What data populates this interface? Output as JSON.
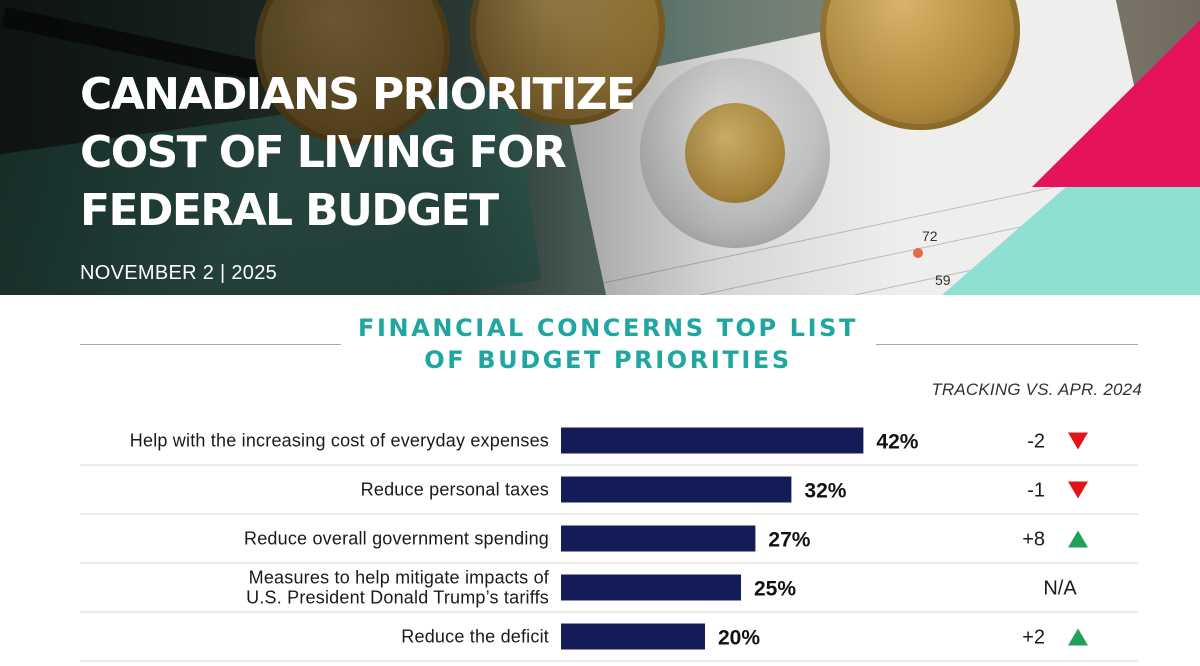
{
  "header": {
    "title_lines": [
      "CANADIANS PRIORITIZE",
      "COST OF LIVING FOR",
      "FEDERAL BUDGET"
    ],
    "date": "NOVEMBER 2 | 2025",
    "background_chart_labels": [
      "72",
      "59"
    ]
  },
  "colors": {
    "bar": "#141c57",
    "title_teal": "#1fa6a0",
    "accent_pink": "#e5135a",
    "accent_mint": "#8ee0d3",
    "up_green": "#22a05a",
    "down_red": "#e3131b"
  },
  "chart_data": {
    "type": "bar",
    "orientation": "horizontal",
    "title": "FINANCIAL CONCERNS TOP LIST OF BUDGET PRIORITIES",
    "title_lines": [
      "FINANCIAL CONCERNS TOP LIST",
      "OF BUDGET PRIORITIES"
    ],
    "tracking_header": "TRACKING VS. APR. 2024",
    "categories": [
      "Help with the increasing cost of everyday expenses",
      "Reduce personal taxes",
      "Reduce overall government spending",
      "Measures to help mitigate impacts of U.S. President Donald Trump’s tariffs",
      "Reduce the deficit"
    ],
    "category_lines": [
      [
        "Help with the increasing cost of everyday expenses"
      ],
      [
        "Reduce personal taxes"
      ],
      [
        "Reduce overall government spending"
      ],
      [
        "Measures to help mitigate impacts of",
        "U.S. President Donald Trump’s tariffs"
      ],
      [
        "Reduce the deficit"
      ]
    ],
    "values": [
      42,
      32,
      27,
      25,
      20
    ],
    "value_labels": [
      "42%",
      "32%",
      "27%",
      "25%",
      "20%"
    ],
    "tracking_values": [
      "-2",
      "-1",
      "+8",
      "N/A",
      "+2"
    ],
    "tracking_direction": [
      "down",
      "down",
      "up",
      "none",
      "up"
    ],
    "xlim": [
      0,
      100
    ],
    "unit": "%",
    "grid": false,
    "legend": "none"
  }
}
